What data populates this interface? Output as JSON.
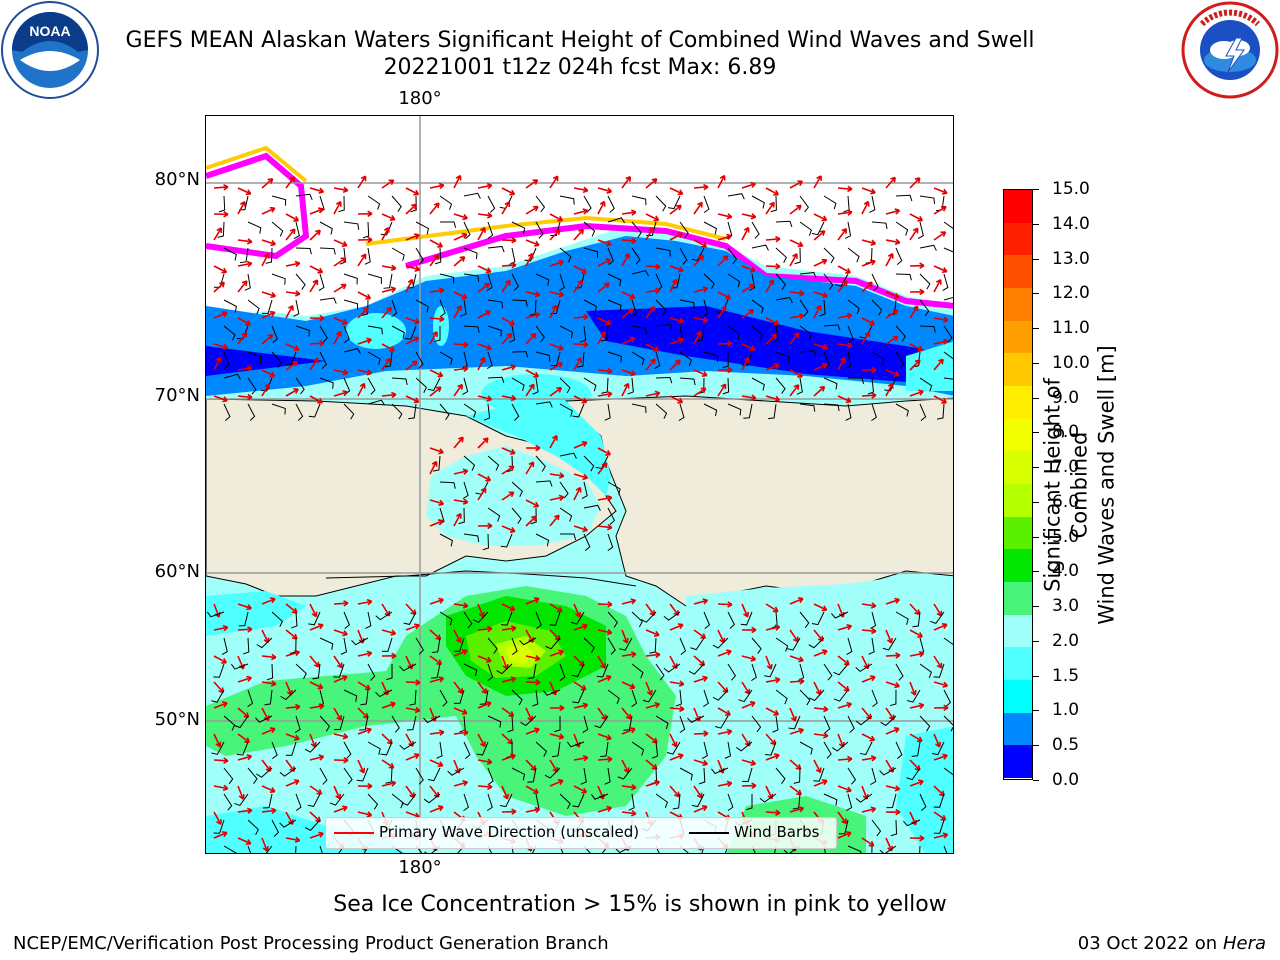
{
  "header": {
    "title_line1": "GEFS MEAN Alaskan Waters Significant Height of Combined Wind Waves and Swell",
    "title_line2": "20221001 t12z 024h fcst   Max: 6.89"
  },
  "logos": {
    "noaa_text": "NOAA",
    "noaa_ring_text": "NATIONAL OCEANIC AND ATMOSPHERIC ADMINISTRATION · U.S. DEPARTMENT OF COMMERCE",
    "nws_ring_text": "NATIONAL WEATHER SERVICE"
  },
  "map": {
    "lon_top": "180°",
    "lon_bottom": "180°",
    "lat_labels": [
      "80°N",
      "70°N",
      "60°N",
      "50°N"
    ],
    "land_color": "#efecdc",
    "ocean_low_color": "#0000ff",
    "ice_colors": [
      "#ff00ff",
      "#ff99cc",
      "#ffcc00",
      "#ffff00"
    ]
  },
  "legend": {
    "wave_label": "Primary Wave Direction (unscaled)",
    "wave_color": "#ff0000",
    "wind_label": "Wind Barbs",
    "wind_color": "#000000"
  },
  "colorbar": {
    "title_line1": "Significant Height of Combined",
    "title_line2": "Wind Waves and Swell [m]",
    "ticks": [
      "15.0",
      "14.0",
      "13.0",
      "12.0",
      "11.0",
      "10.0",
      "9.0",
      "8.0",
      "7.0",
      "6.0",
      "5.0",
      "4.0",
      "3.0",
      "2.0",
      "1.5",
      "1.0",
      "0.5",
      "0.0"
    ],
    "colors_top_to_bottom": [
      "#ff0000",
      "#ff2000",
      "#ff5000",
      "#ff8000",
      "#ffa000",
      "#ffc800",
      "#ffee00",
      "#f2ff00",
      "#d7ff00",
      "#b4ff00",
      "#5af000",
      "#00e600",
      "#48f57a",
      "#a0fff8",
      "#50ffff",
      "#00ffff",
      "#0088ff",
      "#0000ff"
    ]
  },
  "caption": "Sea Ice Concentration > 15% is shown in pink to yellow",
  "footer": {
    "left": "NCEP/EMC/Verification Post Processing Product Generation Branch",
    "right_prefix": "03 Oct 2022 on ",
    "right_host": "Hera"
  }
}
